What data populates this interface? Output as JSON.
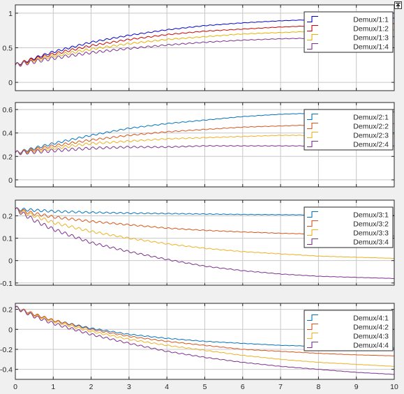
{
  "chart_data": [
    {
      "type": "line",
      "yticks": [
        0,
        0.5,
        1
      ],
      "ytick_labels": [
        "0",
        "0.5",
        "1"
      ],
      "ylim": [
        -0.12,
        1.12
      ],
      "xlim": [
        0,
        10
      ],
      "grid": true,
      "legend_position": "top-right",
      "series": [
        {
          "name": "Demux/1:1",
          "color": "#0000cc",
          "x": [
            0,
            0.5,
            1,
            2,
            3,
            4,
            5,
            6,
            7,
            8,
            9,
            10
          ],
          "values": [
            0.25,
            0.35,
            0.44,
            0.58,
            0.68,
            0.76,
            0.82,
            0.86,
            0.89,
            0.91,
            0.92,
            0.93
          ]
        },
        {
          "name": "Demux/1:2",
          "color": "#cc0000",
          "x": [
            0,
            0.5,
            1,
            2,
            3,
            4,
            5,
            6,
            7,
            8,
            9,
            10
          ],
          "values": [
            0.25,
            0.34,
            0.41,
            0.53,
            0.62,
            0.69,
            0.74,
            0.77,
            0.8,
            0.82,
            0.84,
            0.85
          ]
        },
        {
          "name": "Demux/1:3",
          "color": "#e6b000",
          "x": [
            0,
            0.5,
            1,
            2,
            3,
            4,
            5,
            6,
            7,
            8,
            9,
            10
          ],
          "values": [
            0.25,
            0.32,
            0.38,
            0.48,
            0.56,
            0.62,
            0.66,
            0.7,
            0.72,
            0.74,
            0.75,
            0.76
          ]
        },
        {
          "name": "Demux/1:4",
          "color": "#7e2f8e",
          "x": [
            0,
            0.5,
            1,
            2,
            3,
            4,
            5,
            6,
            7,
            8,
            9,
            10
          ],
          "values": [
            0.25,
            0.3,
            0.35,
            0.43,
            0.49,
            0.54,
            0.58,
            0.61,
            0.63,
            0.64,
            0.65,
            0.66
          ]
        }
      ]
    },
    {
      "type": "line",
      "yticks": [
        0,
        0.2,
        0.4,
        0.6
      ],
      "ytick_labels": [
        "0",
        "0.2",
        "0.4",
        "0.6"
      ],
      "ylim": [
        -0.06,
        0.66
      ],
      "xlim": [
        0,
        10
      ],
      "grid": true,
      "legend_position": "top-right",
      "series": [
        {
          "name": "Demux/2:1",
          "color": "#0072bd",
          "x": [
            0,
            0.5,
            1,
            2,
            3,
            4,
            5,
            6,
            7,
            8,
            9,
            10
          ],
          "values": [
            0.23,
            0.27,
            0.31,
            0.38,
            0.44,
            0.48,
            0.51,
            0.54,
            0.56,
            0.57,
            0.58,
            0.58
          ]
        },
        {
          "name": "Demux/2:2",
          "color": "#d95319",
          "x": [
            0,
            0.5,
            1,
            2,
            3,
            4,
            5,
            6,
            7,
            8,
            9,
            10
          ],
          "values": [
            0.23,
            0.26,
            0.29,
            0.34,
            0.38,
            0.41,
            0.43,
            0.45,
            0.46,
            0.47,
            0.48,
            0.48
          ]
        },
        {
          "name": "Demux/2:3",
          "color": "#edb120",
          "x": [
            0,
            0.5,
            1,
            2,
            3,
            4,
            5,
            6,
            7,
            8,
            9,
            10
          ],
          "values": [
            0.23,
            0.25,
            0.27,
            0.31,
            0.33,
            0.35,
            0.36,
            0.37,
            0.38,
            0.38,
            0.39,
            0.39
          ]
        },
        {
          "name": "Demux/2:4",
          "color": "#7e2f8e",
          "x": [
            0,
            0.5,
            1,
            2,
            3,
            4,
            5,
            6,
            7,
            8,
            9,
            10
          ],
          "values": [
            0.23,
            0.24,
            0.25,
            0.27,
            0.28,
            0.28,
            0.29,
            0.29,
            0.29,
            0.29,
            0.29,
            0.29
          ]
        }
      ]
    },
    {
      "type": "line",
      "yticks": [
        -0.1,
        0,
        0.1,
        0.2
      ],
      "ytick_labels": [
        "-0.1",
        "0",
        "0.1",
        "0.2"
      ],
      "ylim": [
        -0.11,
        0.27
      ],
      "xlim": [
        0,
        10
      ],
      "grid": true,
      "legend_position": "top-right",
      "series": [
        {
          "name": "Demux/3:1",
          "color": "#0072bd",
          "x": [
            0,
            0.5,
            1,
            2,
            3,
            4,
            5,
            6,
            7,
            8,
            9,
            10
          ],
          "values": [
            0.23,
            0.225,
            0.22,
            0.215,
            0.212,
            0.21,
            0.208,
            0.206,
            0.205,
            0.204,
            0.203,
            0.202
          ]
        },
        {
          "name": "Demux/3:2",
          "color": "#d95319",
          "x": [
            0,
            0.5,
            1,
            2,
            3,
            4,
            5,
            6,
            7,
            8,
            9,
            10
          ],
          "values": [
            0.23,
            0.21,
            0.195,
            0.175,
            0.16,
            0.145,
            0.135,
            0.128,
            0.122,
            0.118,
            0.113,
            0.11
          ]
        },
        {
          "name": "Demux/3:3",
          "color": "#edb120",
          "x": [
            0,
            0.5,
            1,
            2,
            3,
            4,
            5,
            6,
            7,
            8,
            9,
            10
          ],
          "values": [
            0.23,
            0.2,
            0.17,
            0.13,
            0.1,
            0.075,
            0.055,
            0.04,
            0.03,
            0.02,
            0.015,
            0.01
          ]
        },
        {
          "name": "Demux/3:4",
          "color": "#7e2f8e",
          "x": [
            0,
            0.5,
            1,
            2,
            3,
            4,
            5,
            6,
            7,
            8,
            9,
            10
          ],
          "values": [
            0.23,
            0.18,
            0.14,
            0.08,
            0.04,
            0.005,
            -0.025,
            -0.045,
            -0.06,
            -0.07,
            -0.075,
            -0.08
          ]
        }
      ]
    },
    {
      "type": "line",
      "yticks": [
        -0.4,
        -0.2,
        0,
        0.2
      ],
      "ytick_labels": [
        "-0.4",
        "-0.2",
        "0",
        "0.2"
      ],
      "ylim": [
        -0.5,
        0.26
      ],
      "xlim": [
        0,
        10
      ],
      "xticks": [
        0,
        1,
        2,
        3,
        4,
        5,
        6,
        7,
        8,
        9,
        10
      ],
      "xtick_labels": [
        "0",
        "1",
        "2",
        "3",
        "4",
        "5",
        "6",
        "7",
        "8",
        "9",
        "10"
      ],
      "grid": true,
      "legend_position": "top-right",
      "series": [
        {
          "name": "Demux/4:1",
          "color": "#0072bd",
          "x": [
            0,
            0.5,
            1,
            2,
            3,
            4,
            5,
            6,
            7,
            8,
            9,
            10
          ],
          "values": [
            0.22,
            0.15,
            0.09,
            0.01,
            -0.05,
            -0.09,
            -0.12,
            -0.14,
            -0.16,
            -0.17,
            -0.18,
            -0.185
          ]
        },
        {
          "name": "Demux/4:2",
          "color": "#d95319",
          "x": [
            0,
            0.5,
            1,
            2,
            3,
            4,
            5,
            6,
            7,
            8,
            9,
            10
          ],
          "values": [
            0.22,
            0.15,
            0.09,
            0.0,
            -0.07,
            -0.12,
            -0.16,
            -0.2,
            -0.22,
            -0.24,
            -0.255,
            -0.265
          ]
        },
        {
          "name": "Demux/4:3",
          "color": "#edb120",
          "x": [
            0,
            0.5,
            1,
            2,
            3,
            4,
            5,
            6,
            7,
            8,
            9,
            10
          ],
          "values": [
            0.22,
            0.14,
            0.08,
            -0.02,
            -0.1,
            -0.16,
            -0.21,
            -0.26,
            -0.3,
            -0.33,
            -0.35,
            -0.37
          ]
        },
        {
          "name": "Demux/4:4",
          "color": "#7e2f8e",
          "x": [
            0,
            0.5,
            1,
            2,
            3,
            4,
            5,
            6,
            7,
            8,
            9,
            10
          ],
          "values": [
            0.22,
            0.13,
            0.06,
            -0.05,
            -0.14,
            -0.22,
            -0.28,
            -0.33,
            -0.37,
            -0.4,
            -0.43,
            -0.45
          ]
        }
      ]
    }
  ]
}
